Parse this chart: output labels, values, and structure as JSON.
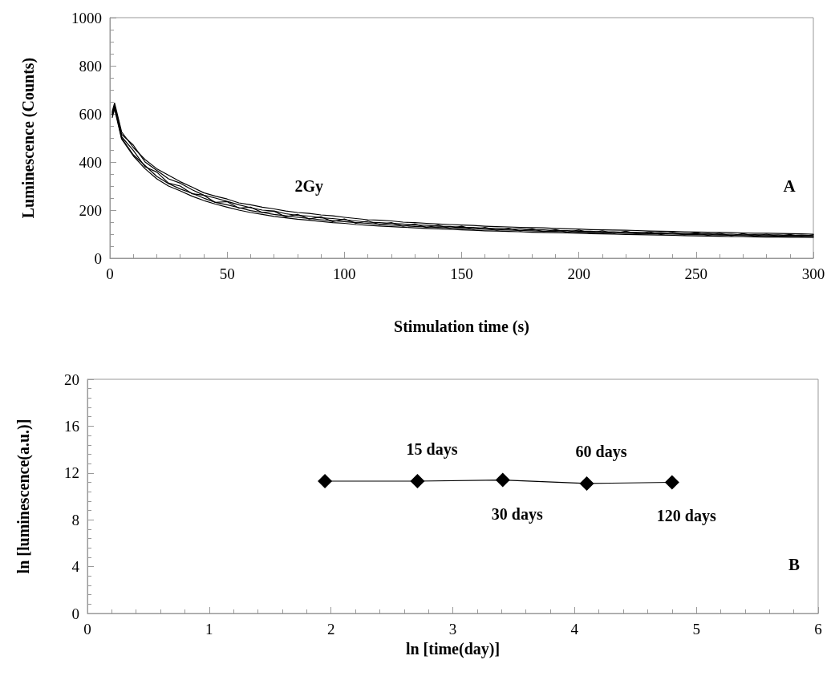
{
  "chart_data": [
    {
      "type": "line",
      "xlabel": "Stimulation time (s)",
      "ylabel": "Luminescence (Counts)",
      "x": [
        1,
        2,
        5,
        10,
        15,
        20,
        25,
        30,
        35,
        40,
        45,
        50,
        55,
        60,
        65,
        70,
        75,
        80,
        85,
        90,
        95,
        100,
        105,
        110,
        115,
        120,
        125,
        130,
        135,
        140,
        145,
        150,
        155,
        160,
        165,
        170,
        175,
        180,
        185,
        190,
        195,
        200,
        205,
        210,
        215,
        220,
        225,
        230,
        235,
        240,
        245,
        250,
        255,
        260,
        265,
        270,
        275,
        280,
        285,
        290,
        295,
        300
      ],
      "series": [
        {
          "color": "#000000",
          "values": [
            610,
            645,
            525,
            460,
            410,
            372,
            345,
            318,
            296,
            272,
            258,
            246,
            230,
            222,
            212,
            205,
            196,
            190,
            186,
            180,
            176,
            170,
            165,
            160,
            158,
            155,
            150,
            148,
            145,
            142,
            140,
            138,
            136,
            133,
            131,
            130,
            128,
            127,
            126,
            124,
            122,
            121,
            119,
            118,
            117,
            116,
            115,
            113,
            112,
            111,
            110,
            109,
            108,
            107,
            106,
            105,
            104,
            104,
            103,
            102,
            101,
            100
          ]
        },
        {
          "color": "#000000",
          "values": [
            595,
            630,
            505,
            448,
            380,
            358,
            312,
            300,
            268,
            262,
            232,
            235,
            208,
            212,
            190,
            195,
            172,
            182,
            163,
            172,
            152,
            163,
            145,
            155,
            140,
            148,
            133,
            142,
            128,
            137,
            124,
            133,
            120,
            128,
            116,
            125,
            113,
            122,
            110,
            119,
            108,
            117,
            105,
            114,
            103,
            112,
            101,
            110,
            99,
            108,
            97,
            106,
            95,
            104,
            93,
            102,
            92,
            100,
            91,
            99,
            90,
            98
          ]
        },
        {
          "color": "#000000",
          "values": [
            585,
            620,
            495,
            425,
            372,
            330,
            300,
            280,
            258,
            240,
            225,
            212,
            200,
            190,
            182,
            174,
            168,
            162,
            158,
            153,
            148,
            145,
            140,
            137,
            134,
            131,
            129,
            126,
            124,
            122,
            120,
            118,
            116,
            114,
            113,
            111,
            110,
            108,
            107,
            106,
            105,
            104,
            102,
            101,
            100,
            99,
            98,
            97,
            96,
            95,
            94,
            93,
            92,
            91,
            90,
            90,
            89,
            88,
            88,
            87,
            87,
            86
          ]
        },
        {
          "color": "#000000",
          "values": [
            605,
            635,
            515,
            470,
            400,
            365,
            330,
            312,
            285,
            262,
            250,
            236,
            222,
            210,
            200,
            196,
            185,
            178,
            175,
            168,
            165,
            160,
            155,
            150,
            148,
            145,
            142,
            138,
            137,
            133,
            132,
            128,
            128,
            124,
            124,
            121,
            121,
            118,
            118,
            115,
            115,
            112,
            112,
            109,
            110,
            107,
            108,
            105,
            106,
            103,
            104,
            101,
            102,
            99,
            100,
            97,
            98,
            96,
            97,
            95,
            96,
            94
          ]
        },
        {
          "color": "#000000",
          "values": [
            600,
            628,
            500,
            430,
            385,
            340,
            310,
            288,
            270,
            250,
            232,
            222,
            210,
            198,
            190,
            182,
            176,
            170,
            165,
            160,
            156,
            152,
            148,
            145,
            141,
            138,
            135,
            132,
            130,
            128,
            126,
            124,
            122,
            120,
            118,
            117,
            115,
            114,
            112,
            111,
            110,
            109,
            107,
            106,
            105,
            104,
            103,
            102,
            101,
            100,
            99,
            98,
            97,
            96,
            95,
            94,
            93,
            93,
            92,
            92,
            91,
            91
          ]
        }
      ],
      "xlim": [
        0,
        300
      ],
      "xticks": [
        0,
        50,
        100,
        150,
        200,
        250,
        300
      ],
      "ylim": [
        0,
        1000
      ],
      "yticks": [
        0,
        200,
        400,
        600,
        800,
        1000
      ],
      "grid": false,
      "marker": "none",
      "line_style": "solid",
      "annotations": [
        "2Gy",
        "A"
      ]
    },
    {
      "type": "line",
      "xlabel": "ln [time(day)]",
      "ylabel": "ln [luminescence(a.u.)]",
      "x": [
        1.95,
        2.71,
        3.41,
        4.1,
        4.8
      ],
      "series": [
        {
          "color": "#000000",
          "values": [
            11.3,
            11.3,
            11.4,
            11.1,
            11.2
          ]
        }
      ],
      "xlim": [
        0,
        6
      ],
      "xticks": [
        0,
        1,
        2,
        3,
        4,
        5,
        6
      ],
      "ylim": [
        0,
        20
      ],
      "yticks": [
        0,
        4,
        8,
        12,
        16,
        20
      ],
      "grid": false,
      "marker": "diamond",
      "line_style": "solid",
      "annotations": [
        {
          "text": "15 days",
          "x": 2.71,
          "y": 11.3
        },
        {
          "text": "30 days",
          "x": 3.41,
          "y": 11.4
        },
        {
          "text": "60 days",
          "x": 4.1,
          "y": 11.1
        },
        {
          "text": "120 days",
          "x": 4.8,
          "y": 11.2
        },
        "B"
      ]
    }
  ]
}
